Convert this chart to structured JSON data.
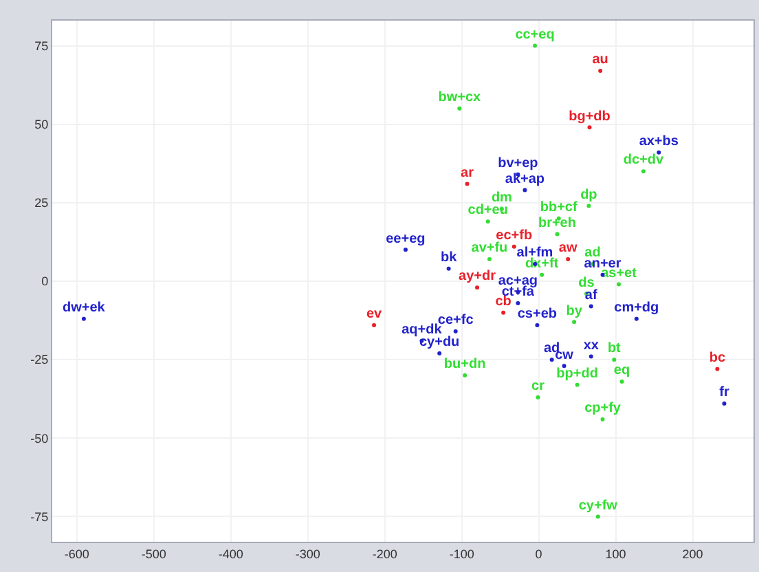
{
  "chart_data": {
    "type": "scatter",
    "marker": "circle",
    "grid": true,
    "xlim": [
      -632,
      279
    ],
    "ylim": [
      -83,
      83
    ],
    "xticks": [
      -600,
      -500,
      -400,
      -300,
      -200,
      -100,
      0,
      100,
      200
    ],
    "yticks": [
      -75,
      -50,
      -25,
      0,
      25,
      50,
      75
    ],
    "series": [
      {
        "color": "#e8202a",
        "x": [
          80,
          66,
          -93,
          -32,
          38,
          -80,
          -46,
          -214,
          232
        ],
        "values": [
          67,
          49,
          31,
          11,
          7,
          -2,
          -10,
          -14,
          -28
        ],
        "value_labels": [
          "au",
          "bg+db",
          "ar",
          "ec+fb",
          "aw",
          "ay+dr",
          "cb",
          "ev",
          "bc"
        ]
      },
      {
        "color": "#33dd33",
        "x": [
          -5,
          -103,
          136,
          -48,
          -66,
          65,
          26,
          24,
          -64,
          70,
          4,
          104,
          62,
          46,
          -96,
          98,
          50,
          108,
          -1,
          83,
          77
        ],
        "values": [
          75,
          55,
          35,
          23,
          19,
          24,
          20,
          15,
          7,
          5.5,
          2,
          -1,
          -4,
          -13,
          -30,
          -25,
          -33,
          -32,
          -37,
          -44,
          -75
        ],
        "value_labels": [
          "cc+eq",
          "bw+cx",
          "dc+dv",
          "dm",
          "cd+eu",
          "dp",
          "bb+cf",
          "br+eh",
          "av+fu",
          "ad",
          "dx+ft",
          "as+et",
          "ds",
          "by",
          "bu+dn",
          "bt",
          "bp+dd",
          "eq",
          "cr",
          "cp+fy",
          "cy+fw"
        ]
      },
      {
        "color": "#2222cc",
        "x": [
          156,
          -27,
          -18,
          -173,
          -117,
          -5,
          83,
          -27,
          -27,
          68,
          -2,
          127,
          -108,
          -152,
          -129,
          17,
          33,
          68,
          241,
          -591
        ],
        "values": [
          41,
          34,
          29,
          10,
          4,
          5.5,
          2,
          -3.5,
          -7,
          -8,
          -14,
          -12,
          -16,
          -19,
          -23,
          -25,
          -27,
          -24,
          -39,
          -12
        ],
        "value_labels": [
          "ax+bs",
          "bv+ep",
          "ak+ap",
          "ee+eg",
          "bk",
          "al+fm",
          "an+er",
          "ac+ag",
          "ct+fa",
          "af",
          "cs+eb",
          "cm+dg",
          "ce+fc",
          "aq+dk",
          "cy+du",
          "ad",
          "cw",
          "xx",
          "fr",
          "dw+ek"
        ]
      }
    ]
  }
}
